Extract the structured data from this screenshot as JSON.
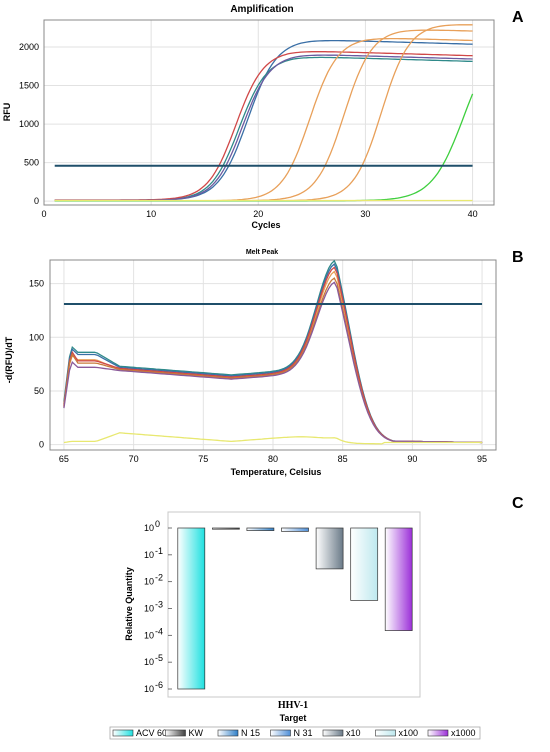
{
  "panels": {
    "a": "A",
    "b": "B",
    "c": "C"
  },
  "chart_data": [
    {
      "type": "line",
      "title": "Amplification",
      "xlabel": "Cycles",
      "ylabel": "RFU",
      "xlim": [
        0,
        42
      ],
      "ylim": [
        -50,
        2350
      ],
      "xticks": [
        "0",
        "10",
        "20",
        "30",
        "40"
      ],
      "yticks": [
        "0",
        "500",
        "1000",
        "1500",
        "2000"
      ],
      "grid": true,
      "threshold": 460,
      "series": [
        {
          "color": "#3a6fa6",
          "baseline": 10,
          "plateau": 2090,
          "midpoint": 19.0,
          "slope": 1.35
        },
        {
          "color": "#2f8a8a",
          "baseline": 10,
          "plateau": 1870,
          "midpoint": 18.2,
          "slope": 1.3
        },
        {
          "color": "#d04848",
          "baseline": 15,
          "plateau": 1940,
          "midpoint": 17.9,
          "slope": 1.3
        },
        {
          "color": "#6b5aa0",
          "baseline": 10,
          "plateau": 1900,
          "midpoint": 18.5,
          "slope": 1.3
        },
        {
          "color": "#e8a05a",
          "baseline": 5,
          "plateau": 2120,
          "midpoint": 24.8,
          "slope": 1.3
        },
        {
          "color": "#e8a05a",
          "baseline": 5,
          "plateau": 2230,
          "midpoint": 28.0,
          "slope": 1.3
        },
        {
          "color": "#e8a05a",
          "baseline": 5,
          "plateau": 2300,
          "midpoint": 31.5,
          "slope": 1.3
        },
        {
          "color": "#3ecf3e",
          "baseline": 5,
          "plateau": 2200,
          "midpoint": 39.2,
          "slope": 1.5
        },
        {
          "color": "#e8e870",
          "baseline": 8,
          "plateau": 0,
          "midpoint": 60,
          "slope": 1
        }
      ]
    },
    {
      "type": "line",
      "title": "Melt Peak",
      "xlabel": "Temperature, Celsius",
      "ylabel": "-d(RFU)/dT",
      "xlim": [
        64,
        96
      ],
      "ylim": [
        -5,
        172
      ],
      "xticks": [
        "65",
        "70",
        "75",
        "80",
        "85",
        "90",
        "95"
      ],
      "yticks": [
        "0",
        "50",
        "100",
        "150"
      ],
      "grid": true,
      "threshold": 131,
      "series": [
        {
          "color": "#2f8a8a",
          "start": 40,
          "spike": 92,
          "shoulder": 86,
          "trough": 65,
          "peak": 168
        },
        {
          "color": "#3a6fa6",
          "start": 38,
          "spike": 90,
          "shoulder": 84,
          "trough": 64,
          "peak": 165
        },
        {
          "color": "#e8a05a",
          "start": 37,
          "spike": 84,
          "shoulder": 79,
          "trough": 62,
          "peak": 158
        },
        {
          "color": "#d04848",
          "start": 36,
          "spike": 88,
          "shoulder": 78,
          "trough": 63,
          "peak": 162
        },
        {
          "color": "#c87a3a",
          "start": 35,
          "spike": 86,
          "shoulder": 76,
          "trough": 62,
          "peak": 152
        },
        {
          "color": "#8a5a9a",
          "start": 34,
          "spike": 78,
          "shoulder": 72,
          "trough": 61,
          "peak": 148
        },
        {
          "color": "#e8e870",
          "start": 2,
          "spike": 3,
          "shoulder": 3,
          "trough": 3,
          "peak": 3
        }
      ]
    },
    {
      "type": "bar",
      "ylabel": "Relative Quantity",
      "xlabel": "Target",
      "group": "HHV-1",
      "scale": "log",
      "ylim_exp": [
        -6,
        0
      ],
      "yticks": [
        "10",
        "10",
        "10",
        "10",
        "10",
        "10",
        "10"
      ],
      "ytick_exps": [
        "0",
        "-1",
        "-2",
        "-3",
        "-4",
        "-5",
        "-6"
      ],
      "categories": [
        "ACV 60",
        "KW",
        "N 15",
        "N 31",
        "x10",
        "x100",
        "x1000"
      ],
      "values": [
        1e-06,
        1.0,
        0.8,
        0.75,
        0.03,
        0.002,
        0.00015
      ],
      "colors": [
        "#1ee0e0",
        "#404040",
        "#2f7fc8",
        "#4f8fd8",
        "#6a7a88",
        "#bde8ee",
        "#9b2fd8"
      ]
    }
  ]
}
